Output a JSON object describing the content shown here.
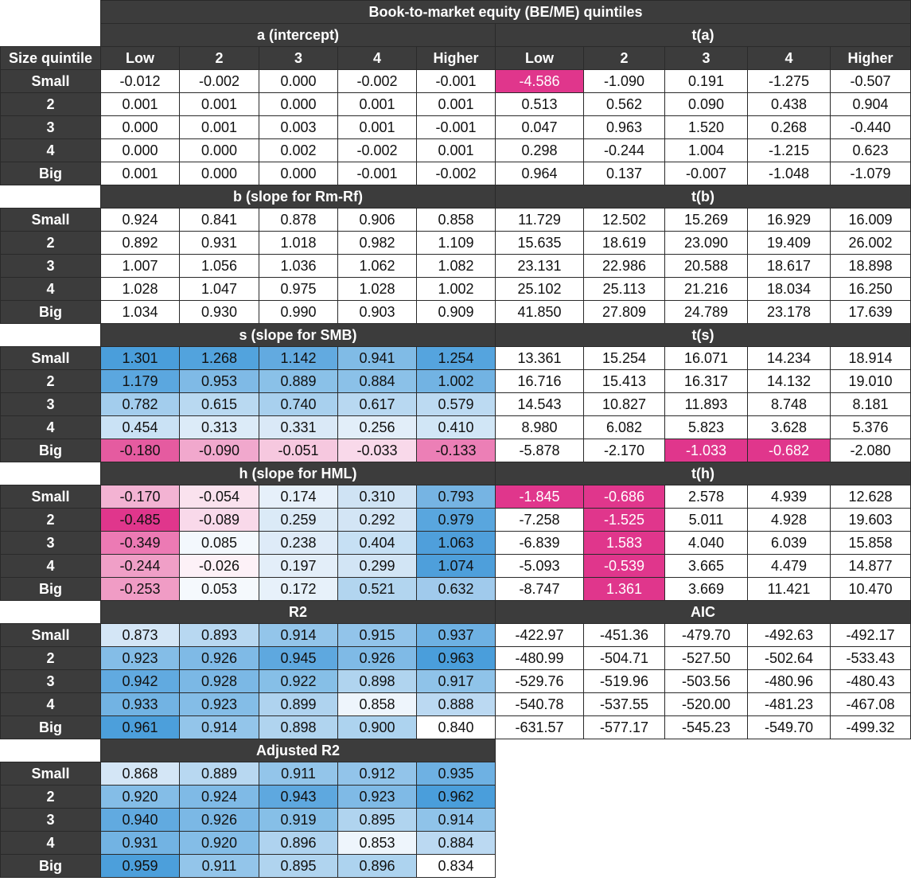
{
  "title": "Book-to-market equity (BE/ME) quintiles",
  "size_label": "Size quintile",
  "col_headers": [
    "Low",
    "2",
    "3",
    "4",
    "Higher"
  ],
  "row_labels": [
    "Small",
    "2",
    "3",
    "4",
    "Big"
  ],
  "colors": {
    "blue_dark": "#4ea0dc",
    "blue_mid": "#8cc3e8",
    "blue_light": "#cfe3f4",
    "blue_pale": "#eaf3fb",
    "pink_dark": "#e0368c",
    "pink_mid": "#ee8cbe",
    "pink_light": "#f6c9e0",
    "pink_pale": "#fbe3ef"
  },
  "blocks": [
    {
      "left": {
        "title": "a (intercept)",
        "rows": [
          [
            "-0.012",
            "-0.002",
            "0.000",
            "-0.002",
            "-0.001"
          ],
          [
            "0.001",
            "0.001",
            "0.000",
            "0.001",
            "0.001"
          ],
          [
            "0.000",
            "0.001",
            "0.003",
            "0.001",
            "-0.001"
          ],
          [
            "0.000",
            "0.000",
            "0.002",
            "-0.002",
            "0.001"
          ],
          [
            "0.001",
            "0.000",
            "0.000",
            "-0.001",
            "-0.002"
          ]
        ],
        "colors": [
          [
            "",
            "",
            "",
            "",
            ""
          ],
          [
            "",
            "",
            "",
            "",
            ""
          ],
          [
            "",
            "",
            "",
            "",
            ""
          ],
          [
            "",
            "",
            "",
            "",
            ""
          ],
          [
            "",
            "",
            "",
            "",
            ""
          ]
        ]
      },
      "right": {
        "title": "t(a)",
        "rows": [
          [
            "-4.586",
            "-1.090",
            "0.191",
            "-1.275",
            "-0.507"
          ],
          [
            "0.513",
            "0.562",
            "0.090",
            "0.438",
            "0.904"
          ],
          [
            "0.047",
            "0.963",
            "1.520",
            "0.268",
            "-0.440"
          ],
          [
            "0.298",
            "-0.244",
            "1.004",
            "-1.215",
            "0.623"
          ],
          [
            "0.964",
            "0.137",
            "-0.007",
            "-1.048",
            "-1.079"
          ]
        ],
        "colors": [
          [
            "#e0368c",
            "",
            "",
            "",
            ""
          ],
          [
            "",
            "",
            "",
            "",
            ""
          ],
          [
            "",
            "",
            "",
            "",
            ""
          ],
          [
            "",
            "",
            "",
            "",
            ""
          ],
          [
            "",
            "",
            "",
            "",
            ""
          ]
        ]
      }
    },
    {
      "left": {
        "title": "b (slope for Rm-Rf)",
        "rows": [
          [
            "0.924",
            "0.841",
            "0.878",
            "0.906",
            "0.858"
          ],
          [
            "0.892",
            "0.931",
            "1.018",
            "0.982",
            "1.109"
          ],
          [
            "1.007",
            "1.056",
            "1.036",
            "1.062",
            "1.082"
          ],
          [
            "1.028",
            "1.047",
            "0.975",
            "1.028",
            "1.002"
          ],
          [
            "1.034",
            "0.930",
            "0.990",
            "0.903",
            "0.909"
          ]
        ],
        "colors": [
          [
            "",
            "",
            "",
            "",
            ""
          ],
          [
            "",
            "",
            "",
            "",
            ""
          ],
          [
            "",
            "",
            "",
            "",
            ""
          ],
          [
            "",
            "",
            "",
            "",
            ""
          ],
          [
            "",
            "",
            "",
            "",
            ""
          ]
        ]
      },
      "right": {
        "title": "t(b)",
        "rows": [
          [
            "11.729",
            "12.502",
            "15.269",
            "16.929",
            "16.009"
          ],
          [
            "15.635",
            "18.619",
            "23.090",
            "19.409",
            "26.002"
          ],
          [
            "23.131",
            "22.986",
            "20.588",
            "18.617",
            "18.898"
          ],
          [
            "25.102",
            "25.113",
            "21.216",
            "18.034",
            "16.250"
          ],
          [
            "41.850",
            "27.809",
            "24.789",
            "23.178",
            "17.639"
          ]
        ],
        "colors": [
          [
            "",
            "",
            "",
            "",
            ""
          ],
          [
            "",
            "",
            "",
            "",
            ""
          ],
          [
            "",
            "",
            "",
            "",
            ""
          ],
          [
            "",
            "",
            "",
            "",
            ""
          ],
          [
            "",
            "",
            "",
            "",
            ""
          ]
        ]
      }
    },
    {
      "left": {
        "title": "s (slope for SMB)",
        "rows": [
          [
            "1.301",
            "1.268",
            "1.142",
            "0.941",
            "1.254"
          ],
          [
            "1.179",
            "0.953",
            "0.889",
            "0.884",
            "1.002"
          ],
          [
            "0.782",
            "0.615",
            "0.740",
            "0.617",
            "0.579"
          ],
          [
            "0.454",
            "0.313",
            "0.331",
            "0.256",
            "0.410"
          ],
          [
            "-0.180",
            "-0.090",
            "-0.051",
            "-0.033",
            "-0.133"
          ]
        ],
        "colors": [
          [
            "#4a9edb",
            "#52a3dd",
            "#62aae0",
            "#80bbe6",
            "#55a4de"
          ],
          [
            "#5ba7df",
            "#7fbae6",
            "#8ac1e8",
            "#8bc1e8",
            "#72b3e3"
          ],
          [
            "#a3cded",
            "#b9d9f1",
            "#a8d0ee",
            "#b8d8f1",
            "#bcdaf2"
          ],
          [
            "#cae2f5",
            "#dcebf8",
            "#dae9f7",
            "#e2eef9",
            "#d1e6f6"
          ],
          [
            "#e55ba0",
            "#f1a8cd",
            "#f6c8df",
            "#f9d9ea",
            "#ec7fb6"
          ]
        ]
      },
      "right": {
        "title": "t(s)",
        "rows": [
          [
            "13.361",
            "15.254",
            "16.071",
            "14.234",
            "18.914"
          ],
          [
            "16.716",
            "15.413",
            "16.317",
            "14.132",
            "19.010"
          ],
          [
            "14.543",
            "10.827",
            "11.893",
            "8.748",
            "8.181"
          ],
          [
            "8.980",
            "6.082",
            "5.823",
            "3.628",
            "5.376"
          ],
          [
            "-5.878",
            "-2.170",
            "-1.033",
            "-0.682",
            "-2.080"
          ]
        ],
        "colors": [
          [
            "",
            "",
            "",
            "",
            ""
          ],
          [
            "",
            "",
            "",
            "",
            ""
          ],
          [
            "",
            "",
            "",
            "",
            ""
          ],
          [
            "",
            "",
            "",
            "",
            ""
          ],
          [
            "",
            "",
            "",
            "#e0368c",
            ""
          ]
        ]
      }
    },
    {
      "left": {
        "title": "h (slope for HML)",
        "rows": [
          [
            "-0.170",
            "-0.054",
            "0.174",
            "0.310",
            "0.793"
          ],
          [
            "-0.485",
            "-0.089",
            "0.259",
            "0.292",
            "0.979"
          ],
          [
            "-0.349",
            "0.085",
            "0.238",
            "0.404",
            "1.063"
          ],
          [
            "-0.244",
            "-0.026",
            "0.197",
            "0.299",
            "1.074"
          ],
          [
            "-0.253",
            "0.053",
            "0.172",
            "0.521",
            "0.632"
          ]
        ],
        "colors": [
          [
            "#f3b3d3",
            "#fae2ee",
            "#e6f0fa",
            "#cfe3f4",
            "#76b4e3"
          ],
          [
            "#e0368c",
            "#f9d9ea",
            "#dbeaf7",
            "#d3e5f5",
            "#59a6de"
          ],
          [
            "#ec7ab4",
            "#f3f8fd",
            "#deebf8",
            "#c6e0f4",
            "#4f9fdb"
          ],
          [
            "#f09fc7",
            "#fdf1f7",
            "#e3eef9",
            "#d2e5f5",
            "#4e9fdb"
          ],
          [
            "#f09cc5",
            "#f5f9fd",
            "#e7f1fa",
            "#b2d5ef",
            "#a0caec"
          ]
        ]
      },
      "right": {
        "title": "t(h)",
        "rows": [
          [
            "-1.845",
            "-0.686",
            "2.578",
            "4.939",
            "12.628"
          ],
          [
            "-7.258",
            "-1.525",
            "5.011",
            "4.928",
            "19.603"
          ],
          [
            "-6.839",
            "1.583",
            "4.040",
            "6.039",
            "15.858"
          ],
          [
            "-5.093",
            "-0.539",
            "3.665",
            "4.479",
            "14.877"
          ],
          [
            "-8.747",
            "1.361",
            "3.669",
            "11.421",
            "10.470"
          ]
        ],
        "colors": [
          [
            "#e0368c",
            "#e0368c",
            "",
            "",
            ""
          ],
          [
            "",
            "#e0368c",
            "",
            "",
            ""
          ],
          [
            "",
            "#e0368c",
            "",
            "",
            ""
          ],
          [
            "",
            "#e0368c",
            "",
            "",
            ""
          ],
          [
            "",
            "#e0368c",
            "",
            "",
            ""
          ]
        ]
      }
    },
    {
      "left": {
        "title": "R2",
        "rows": [
          [
            "0.873",
            "0.893",
            "0.914",
            "0.915",
            "0.937"
          ],
          [
            "0.923",
            "0.926",
            "0.945",
            "0.926",
            "0.963"
          ],
          [
            "0.942",
            "0.928",
            "0.922",
            "0.898",
            "0.917"
          ],
          [
            "0.933",
            "0.923",
            "0.899",
            "0.858",
            "0.888"
          ],
          [
            "0.961",
            "0.914",
            "0.898",
            "0.900",
            "0.840"
          ]
        ],
        "colors": [
          [
            "#d4e6f6",
            "#b8d8f1",
            "#93c5ea",
            "#92c4ea",
            "#6eb1e3"
          ],
          [
            "#84bde7",
            "#7fbae6",
            "#5ea8df",
            "#7fbae6",
            "#4a9edb"
          ],
          [
            "#61aae0",
            "#7bb8e5",
            "#86bfe7",
            "#b0d4ef",
            "#8fc3e9"
          ],
          [
            "#72b3e3",
            "#84bde7",
            "#afd3ef",
            "#eef5fc",
            "#bbd9f2"
          ],
          [
            "#4c9fdb",
            "#93c5ea",
            "#b0d4ef",
            "#add3ef",
            "#ffffff"
          ]
        ]
      },
      "right": {
        "title": "AIC",
        "rows": [
          [
            "-422.97",
            "-451.36",
            "-479.70",
            "-492.63",
            "-492.17"
          ],
          [
            "-480.99",
            "-504.71",
            "-527.50",
            "-502.64",
            "-533.43"
          ],
          [
            "-529.76",
            "-519.96",
            "-503.56",
            "-480.96",
            "-480.43"
          ],
          [
            "-540.78",
            "-537.55",
            "-520.00",
            "-481.23",
            "-467.08"
          ],
          [
            "-631.57",
            "-577.17",
            "-545.23",
            "-549.70",
            "-499.32"
          ]
        ],
        "colors": [
          [
            "",
            "",
            "",
            "",
            ""
          ],
          [
            "",
            "",
            "",
            "",
            ""
          ],
          [
            "",
            "",
            "",
            "",
            ""
          ],
          [
            "",
            "",
            "",
            "",
            ""
          ],
          [
            "",
            "",
            "",
            "",
            ""
          ]
        ]
      }
    },
    {
      "left": {
        "title": "Adjusted R2",
        "rows": [
          [
            "0.868",
            "0.889",
            "0.911",
            "0.912",
            "0.935"
          ],
          [
            "0.920",
            "0.924",
            "0.943",
            "0.923",
            "0.962"
          ],
          [
            "0.940",
            "0.926",
            "0.919",
            "0.895",
            "0.914"
          ],
          [
            "0.931",
            "0.920",
            "0.896",
            "0.853",
            "0.884"
          ],
          [
            "0.959",
            "0.911",
            "0.895",
            "0.896",
            "0.834"
          ]
        ],
        "colors": [
          [
            "#d4e6f6",
            "#b8d8f1",
            "#93c5ea",
            "#92c4ea",
            "#6eb1e3"
          ],
          [
            "#84bde7",
            "#7fbae6",
            "#5ea8df",
            "#7fbae6",
            "#4a9edb"
          ],
          [
            "#61aae0",
            "#7bb8e5",
            "#86bfe7",
            "#b0d4ef",
            "#8fc3e9"
          ],
          [
            "#72b3e3",
            "#84bde7",
            "#afd3ef",
            "#eef5fc",
            "#bbd9f2"
          ],
          [
            "#4c9fdb",
            "#93c5ea",
            "#b0d4ef",
            "#add3ef",
            "#ffffff"
          ]
        ]
      },
      "right": null
    }
  ]
}
